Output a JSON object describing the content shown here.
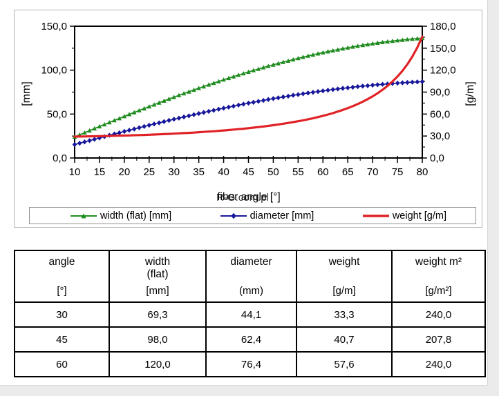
{
  "page": {
    "background": "#ebebeb",
    "content_background": "#ffffff"
  },
  "chart_data": {
    "type": "line",
    "title": "",
    "xlabel": "fiber angle [°]",
    "watermark": "R-G.com.pl",
    "ylabel_left": "[mm]",
    "ylabel_right": "[g/m]",
    "grid": false,
    "legend_position": "bottom",
    "x_ticks": [
      10,
      15,
      20,
      25,
      30,
      35,
      40,
      45,
      50,
      55,
      60,
      65,
      70,
      75,
      80
    ],
    "x_tick_labels": [
      "10",
      "15",
      "20",
      "25",
      "30",
      "35",
      "40",
      "45",
      "50",
      "55",
      "60",
      "65",
      "70",
      "75",
      "80"
    ],
    "left_axis": {
      "lim": [
        0,
        150
      ],
      "tick_values": [
        0,
        50,
        100,
        150
      ],
      "tick_labels": [
        "0,0",
        "50,0",
        "100,0",
        "150,0"
      ],
      "minor_step": 25
    },
    "right_axis": {
      "lim": [
        0,
        180
      ],
      "tick_values": [
        0,
        30,
        60,
        90,
        120,
        150,
        180
      ],
      "tick_labels": [
        "0,0",
        "30,0",
        "60,0",
        "90,0",
        "120,0",
        "150,0",
        "180,0"
      ],
      "minor_step": 15
    },
    "x": [
      10,
      11,
      12,
      13,
      14,
      15,
      16,
      17,
      18,
      19,
      20,
      21,
      22,
      23,
      24,
      25,
      26,
      27,
      28,
      29,
      30,
      31,
      32,
      33,
      34,
      35,
      36,
      37,
      38,
      39,
      40,
      41,
      42,
      43,
      44,
      45,
      46,
      47,
      48,
      49,
      50,
      51,
      52,
      53,
      54,
      55,
      56,
      57,
      58,
      59,
      60,
      61,
      62,
      63,
      64,
      65,
      66,
      67,
      68,
      69,
      70,
      71,
      72,
      73,
      74,
      75,
      76,
      77,
      78,
      79,
      80
    ],
    "series": [
      {
        "name": "width (flat) [mm]",
        "axis": "left",
        "color": "#1f8c1f",
        "marker": "triangle",
        "values": [
          24.1,
          26.4,
          28.8,
          31.2,
          33.5,
          35.9,
          38.2,
          40.5,
          42.8,
          45.1,
          47.4,
          49.7,
          51.9,
          54.1,
          56.3,
          58.6,
          60.7,
          62.9,
          65.0,
          67.2,
          69.3,
          71.4,
          73.4,
          75.5,
          77.5,
          79.5,
          81.4,
          83.4,
          85.3,
          87.2,
          89.1,
          90.9,
          92.7,
          94.5,
          96.2,
          98.0,
          99.7,
          101.3,
          103.0,
          104.6,
          106.1,
          107.7,
          109.2,
          110.6,
          112.1,
          113.5,
          114.9,
          116.2,
          117.5,
          118.8,
          120.0,
          121.2,
          122.3,
          123.4,
          124.5,
          125.6,
          126.6,
          127.5,
          128.5,
          129.3,
          130.2,
          131.0,
          131.8,
          132.5,
          133.2,
          133.8,
          134.4,
          135.0,
          135.5,
          136.0,
          136.4
        ]
      },
      {
        "name": "diameter [mm]",
        "axis": "left",
        "color": "#17179b",
        "marker": "diamond",
        "values": [
          15.3,
          16.8,
          18.3,
          19.8,
          21.3,
          22.8,
          24.3,
          25.8,
          27.3,
          28.7,
          30.2,
          31.6,
          33.0,
          34.5,
          35.9,
          37.3,
          38.7,
          40.0,
          41.4,
          42.8,
          44.1,
          45.4,
          46.7,
          48.0,
          49.3,
          50.6,
          51.8,
          53.1,
          54.3,
          55.5,
          56.7,
          57.9,
          59.0,
          60.2,
          61.3,
          62.4,
          63.4,
          64.5,
          65.5,
          66.6,
          67.6,
          68.5,
          69.5,
          70.4,
          71.4,
          72.2,
          73.1,
          74.0,
          74.8,
          75.6,
          76.4,
          77.1,
          77.9,
          78.6,
          79.3,
          79.9,
          80.6,
          81.2,
          81.8,
          82.3,
          82.9,
          83.4,
          83.9,
          84.3,
          84.8,
          85.2,
          85.6,
          85.9,
          86.3,
          86.6,
          86.9
        ]
      },
      {
        "name": "weight [g/m]",
        "axis": "right",
        "color": "#e02226",
        "marker": "none",
        "values": [
          29.2,
          29.3,
          29.4,
          29.6,
          29.7,
          29.8,
          30.0,
          30.1,
          30.3,
          30.5,
          30.6,
          30.8,
          31.1,
          31.3,
          31.5,
          31.8,
          32.0,
          32.3,
          32.6,
          32.9,
          33.3,
          33.6,
          34.0,
          34.3,
          34.7,
          35.2,
          35.6,
          36.1,
          36.5,
          37.1,
          37.6,
          38.2,
          38.8,
          39.4,
          40.0,
          40.7,
          41.5,
          42.2,
          43.0,
          43.9,
          44.8,
          45.8,
          46.8,
          47.9,
          49.0,
          50.2,
          51.5,
          52.9,
          54.3,
          55.9,
          57.6,
          59.4,
          61.3,
          63.4,
          65.7,
          68.1,
          70.8,
          73.7,
          76.9,
          80.4,
          84.2,
          88.4,
          93.2,
          98.5,
          104.5,
          111.3,
          119.0,
          128.0,
          138.5,
          150.9,
          165.9
        ]
      }
    ]
  },
  "legend": {
    "items": [
      {
        "label": "width (flat) [mm]"
      },
      {
        "label": "diameter [mm]"
      },
      {
        "label": "weight [g/m]"
      }
    ]
  },
  "table": {
    "headers": [
      {
        "name": "angle",
        "name2": "",
        "unit": "[°]"
      },
      {
        "name": "width",
        "name2": "(flat)",
        "unit": "[mm]"
      },
      {
        "name": "diameter",
        "name2": "",
        "unit": "(mm)"
      },
      {
        "name": "weight",
        "name2": "",
        "unit": "[g/m]"
      },
      {
        "name": "weight m²",
        "name2": "",
        "unit": "[g/m²]"
      }
    ],
    "rows": [
      [
        "30",
        "69,3",
        "44,1",
        "33,3",
        "240,0"
      ],
      [
        "45",
        "98,0",
        "62,4",
        "40,7",
        "207,8"
      ],
      [
        "60",
        "120,0",
        "76,4",
        "57,6",
        "240,0"
      ]
    ]
  }
}
